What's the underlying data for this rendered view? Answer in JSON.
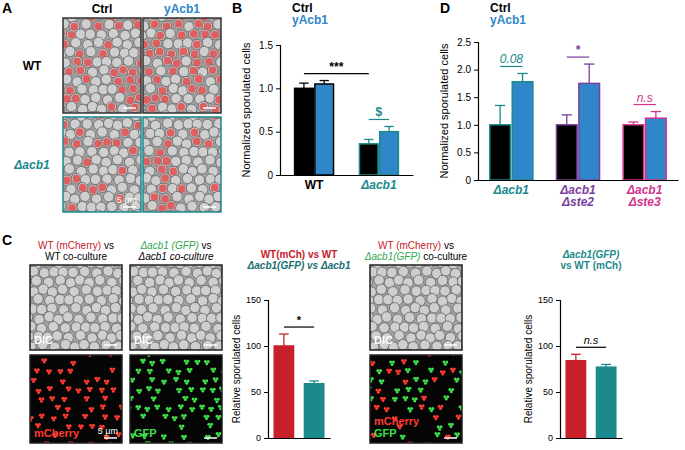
{
  "figure": {
    "panel_labels": {
      "a": "A",
      "b": "B",
      "c": "C",
      "d": "D"
    },
    "panel_a": {
      "columns": [
        {
          "text": "Ctrl",
          "color": "#000000"
        },
        {
          "text": "yAcb1",
          "color": "#2f86c8"
        }
      ],
      "rows": [
        {
          "text": "WT",
          "color": "#000000"
        },
        {
          "text": "Δacb1",
          "color": "#1b8a8c"
        }
      ],
      "scale_bar": "5 μm"
    },
    "panel_c": {
      "groups": [
        {
          "heading": [
            [
              {
                "text": "WT (mCherry)",
                "color": "#c8202a"
              },
              {
                "text": " vs",
                "color": "#000000"
              }
            ],
            [
              {
                "text": "WT co-culture",
                "color": "#000000"
              }
            ]
          ],
          "images": [
            {
              "kind": "dic",
              "labels": [
                {
                  "text": "DIC",
                  "color": "#ffffff"
                }
              ]
            },
            {
              "kind": "mcherry",
              "labels": [
                {
                  "text": "mCherry",
                  "color": "#ff3b30"
                }
              ],
              "scale_bar": "5 μm"
            }
          ]
        },
        {
          "heading": [
            [
              {
                "text": "Δacb1 (GFP)",
                "color": "#2fa84f"
              },
              {
                "text": " vs",
                "color": "#000000"
              }
            ],
            [
              {
                "text": "Δacb1 co-culture",
                "color": "#000000"
              }
            ]
          ],
          "images": [
            {
              "kind": "dic",
              "labels": [
                {
                  "text": "DIC",
                  "color": "#ffffff"
                }
              ]
            },
            {
              "kind": "gfp",
              "labels": [
                {
                  "text": "GFP",
                  "color": "#3ee04a"
                }
              ]
            }
          ]
        },
        {
          "heading": [
            [
              {
                "text": "WT (mCherry)",
                "color": "#c8202a"
              },
              {
                "text": " vs",
                "color": "#000000"
              }
            ],
            [
              {
                "text": "Δacb1(GFP)",
                "color": "#2fa84f"
              },
              {
                "text": " co-culture",
                "color": "#000000"
              }
            ]
          ],
          "images": [
            {
              "kind": "dic",
              "labels": [
                {
                  "text": "DIC",
                  "color": "#ffffff"
                }
              ]
            },
            {
              "kind": "merge",
              "labels": [
                {
                  "text": "mCherry",
                  "color": "#ff3b30"
                },
                {
                  "text": "GFP",
                  "color": "#3ee04a"
                }
              ]
            }
          ]
        }
      ]
    }
  },
  "chart_data": [
    {
      "type": "bar",
      "categories": [
        "WT",
        "Δacb1"
      ],
      "colors": [
        "#000000",
        "#1b8a8c"
      ],
      "ylabel": "Normalized sporulated cells",
      "ylim": [
        0,
        1.5
      ],
      "yticks": [
        0,
        0.5,
        {
          "value": 1,
          "label": "1.0"
        },
        1.5
      ],
      "legend": "top-left",
      "series": [
        {
          "name": "Ctrl",
          "color": "#000000",
          "values": [
            1.0,
            0.36
          ],
          "errors": [
            0.06,
            0.05
          ]
        },
        {
          "name": "yAcb1",
          "color": "#2f86c8",
          "values": [
            1.05,
            0.5
          ],
          "errors": [
            0.04,
            0.06
          ]
        }
      ],
      "annotations": [
        {
          "text": "***",
          "bars": [
            [
              0,
              0
            ],
            [
              0,
              1
            ]
          ],
          "color": "#000000"
        },
        {
          "text": "$",
          "bars": [
            [
              0,
              1
            ],
            [
              1,
              1
            ]
          ],
          "color": "#1b8a8c"
        }
      ]
    },
    {
      "type": "bar",
      "categories": [
        "Δacb1",
        "Δacb1\nΔste2",
        "Δacb1\nΔste3"
      ],
      "colors": [
        "#1b8a8c",
        "#7b3f9e",
        "#d2358c"
      ],
      "ylabel": "Normalized sporulated cells",
      "ylim": [
        0,
        2.5
      ],
      "yticks": [
        0,
        0.5,
        {
          "value": 1,
          "label": "1.0"
        },
        1.5,
        {
          "value": 2,
          "label": "2.0"
        },
        2.5
      ],
      "legend": "top-left",
      "series": [
        {
          "name": "Ctrl",
          "color": "#000000",
          "values": [
            1.0,
            1.0,
            1.0
          ],
          "errors": [
            0.35,
            0.18,
            0.05
          ]
        },
        {
          "name": "yAcb1",
          "color": "#2f86c8",
          "values": [
            1.78,
            1.75,
            1.12
          ],
          "errors": [
            0.15,
            0.35,
            0.12
          ]
        }
      ],
      "annotations": [
        {
          "text": "0.08",
          "bars": [
            [
              0,
              0
            ],
            [
              1,
              0
            ]
          ],
          "color": "#1b8a8c"
        },
        {
          "text": "*",
          "bars": [
            [
              0,
              1
            ],
            [
              1,
              1
            ]
          ],
          "color": "#7b3f9e"
        },
        {
          "text": "n.s",
          "bars": [
            [
              0,
              2
            ],
            [
              1,
              2
            ]
          ],
          "color": "#d2358c"
        }
      ]
    },
    {
      "type": "bar",
      "title": [
        {
          "text": "WT(mCh) vs WT",
          "color": "#c8202a"
        },
        {
          "text": "Δacb1(GFP) vs Δacb1",
          "color": "#1b6f70"
        }
      ],
      "categories": [
        null,
        null
      ],
      "ylabel": "Relative sporulated cells",
      "ylim": [
        0,
        150
      ],
      "yticks": [
        0,
        50,
        100,
        150
      ],
      "series": [
        {
          "values": [
            100,
            59
          ],
          "errors": [
            13,
            3
          ],
          "colors": [
            "#c8202a",
            "#1b8a8c"
          ]
        }
      ],
      "annotations": [
        {
          "text": "*",
          "bars": [
            [
              0,
              0
            ],
            [
              0,
              1
            ]
          ],
          "color": "#000000"
        }
      ]
    },
    {
      "type": "bar",
      "title": [
        {
          "text": "Δacb1(GFP)",
          "color": "#1b8a8c"
        },
        {
          "text": "vs WT (mCh)",
          "color": "#1b8a8c"
        }
      ],
      "categories": [
        null,
        null
      ],
      "ylabel": "Relative sporulated cells",
      "ylim": [
        0,
        150
      ],
      "yticks": [
        0,
        50,
        100,
        150
      ],
      "series": [
        {
          "values": [
            84,
            77
          ],
          "errors": [
            7,
            3
          ],
          "colors": [
            "#c8202a",
            "#1b8a8c"
          ]
        }
      ],
      "annotations": [
        {
          "text": "n.s",
          "bars": [
            [
              0,
              0
            ],
            [
              0,
              1
            ]
          ],
          "color": "#000000"
        }
      ]
    }
  ]
}
